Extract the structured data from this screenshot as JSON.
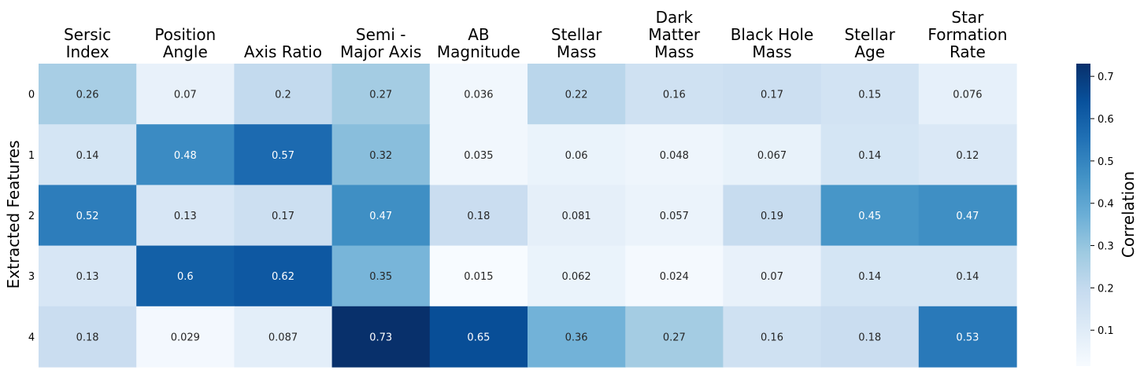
{
  "chart_data": {
    "type": "heatmap",
    "columns": [
      [
        "Sersic",
        "Index"
      ],
      [
        "Position",
        "Angle"
      ],
      [
        "Axis Ratio"
      ],
      [
        "Semi -",
        "Major Axis"
      ],
      [
        "AB",
        "Magnitude"
      ],
      [
        "Stellar",
        "Mass"
      ],
      [
        "Dark",
        "Matter",
        "Mass"
      ],
      [
        "Black Hole",
        "Mass"
      ],
      [
        "Stellar",
        "Age"
      ],
      [
        "Star",
        "Formation",
        "Rate"
      ]
    ],
    "rows": [
      "0",
      "1",
      "2",
      "3",
      "4"
    ],
    "values": [
      [
        0.26,
        0.07,
        0.2,
        0.27,
        0.036,
        0.22,
        0.16,
        0.17,
        0.15,
        0.076
      ],
      [
        0.14,
        0.48,
        0.57,
        0.32,
        0.035,
        0.06,
        0.048,
        0.067,
        0.14,
        0.12
      ],
      [
        0.52,
        0.13,
        0.17,
        0.47,
        0.18,
        0.081,
        0.057,
        0.19,
        0.45,
        0.47
      ],
      [
        0.13,
        0.6,
        0.62,
        0.35,
        0.015,
        0.062,
        0.024,
        0.07,
        0.14,
        0.14
      ],
      [
        0.18,
        0.029,
        0.087,
        0.73,
        0.65,
        0.36,
        0.27,
        0.16,
        0.18,
        0.53
      ]
    ],
    "ylabel": "Extracted Features",
    "colorbar": {
      "label": "Correlation",
      "range": [
        0.015,
        0.73
      ],
      "ticks": [
        0.1,
        0.2,
        0.3,
        0.4,
        0.5,
        0.6,
        0.7
      ],
      "colormap": "Blues"
    }
  }
}
